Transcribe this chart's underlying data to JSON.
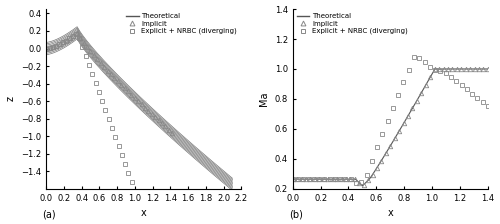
{
  "fig_width": 5.0,
  "fig_height": 2.24,
  "dpi": 100,
  "background_color": "#ffffff",
  "panel_a": {
    "xlabel": "x",
    "ylabel": "z",
    "xlim": [
      0.0,
      2.2
    ],
    "ylim": [
      -1.6,
      0.45
    ],
    "xticks": [
      0.0,
      0.2,
      0.4,
      0.6,
      0.8,
      1.0,
      1.2,
      1.4,
      1.6,
      1.8,
      2.0,
      2.2
    ],
    "yticks": [
      0.4,
      0.2,
      0.0,
      -0.2,
      -0.4,
      -0.6,
      -0.8,
      -1.0,
      -1.2,
      -1.4
    ],
    "label": "(a)",
    "line_color": "#555555",
    "marker_color": "#888888"
  },
  "panel_b": {
    "xlabel": "x",
    "ylabel": "Ma",
    "xlim": [
      0.0,
      1.4
    ],
    "ylim": [
      0.2,
      1.4
    ],
    "xticks": [
      0.0,
      0.2,
      0.4,
      0.6,
      0.8,
      1.0,
      1.2,
      1.4
    ],
    "yticks": [
      0.2,
      0.4,
      0.6,
      0.8,
      1.0,
      1.2,
      1.4
    ],
    "label": "(b)",
    "line_color": "#555555",
    "marker_color": "#888888"
  },
  "legend_entries": [
    "Theoretical",
    "Implicit",
    "Explicit + NRBC (diverging)"
  ]
}
